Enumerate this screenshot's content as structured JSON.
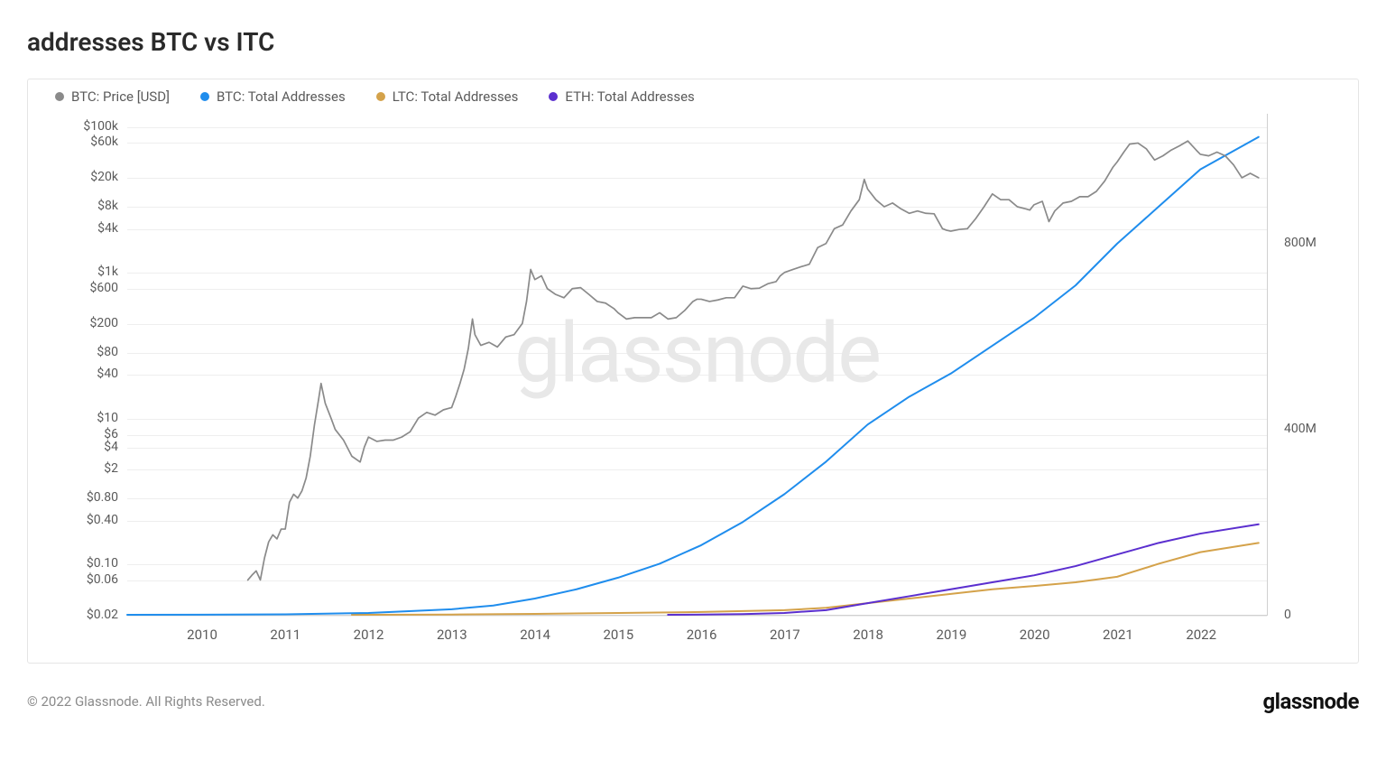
{
  "title": "addresses BTC vs ITC",
  "legend": [
    {
      "label": "BTC: Price [USD]",
      "color": "#8a8a8a"
    },
    {
      "label": "BTC: Total Addresses",
      "color": "#1f8ded"
    },
    {
      "label": "LTC: Total Addresses",
      "color": "#d4a24a"
    },
    {
      "label": "ETH: Total Addresses",
      "color": "#5b2fcf"
    }
  ],
  "watermark": "glassnode",
  "copyright": "© 2022 Glassnode. All Rights Reserved.",
  "brand": "glassnode",
  "chart": {
    "background_color": "#ffffff",
    "grid_color": "#eeeeee",
    "border_color": "#d0d0d0",
    "text_color": "#5a5a5a",
    "watermark_color": "#e8e8e8",
    "axis_fontsize": 14,
    "x": {
      "domain": [
        2009.1,
        2022.8
      ],
      "ticks": [
        2010,
        2011,
        2012,
        2013,
        2014,
        2015,
        2016,
        2017,
        2018,
        2019,
        2020,
        2021,
        2022
      ]
    },
    "y_left": {
      "scale": "log",
      "domain_log10": [
        -1.7,
        5.18
      ],
      "ticks": [
        {
          "v": 0.02,
          "label": "$0.02"
        },
        {
          "v": 0.06,
          "label": "$0.06"
        },
        {
          "v": 0.1,
          "label": "$0.10"
        },
        {
          "v": 0.4,
          "label": "$0.40"
        },
        {
          "v": 0.8,
          "label": "$0.80"
        },
        {
          "v": 2,
          "label": "$2"
        },
        {
          "v": 4,
          "label": "$4"
        },
        {
          "v": 6,
          "label": "$6"
        },
        {
          "v": 10,
          "label": "$10"
        },
        {
          "v": 40,
          "label": "$40"
        },
        {
          "v": 80,
          "label": "$80"
        },
        {
          "v": 200,
          "label": "$200"
        },
        {
          "v": 600,
          "label": "$600"
        },
        {
          "v": 1000,
          "label": "$1k"
        },
        {
          "v": 4000,
          "label": "$4k"
        },
        {
          "v": 8000,
          "label": "$8k"
        },
        {
          "v": 20000,
          "label": "$20k"
        },
        {
          "v": 60000,
          "label": "$60k"
        },
        {
          "v": 100000,
          "label": "$100k"
        }
      ]
    },
    "y_right": {
      "scale": "linear",
      "domain": [
        0,
        1080000000
      ],
      "ticks": [
        {
          "v": 0,
          "label": "0"
        },
        {
          "v": 400000000,
          "label": "400M"
        },
        {
          "v": 800000000,
          "label": "800M"
        }
      ]
    },
    "series": {
      "btc_price": {
        "color": "#8a8a8a",
        "width": 1.7,
        "axis": "left",
        "points": [
          [
            2010.55,
            0.06
          ],
          [
            2010.6,
            0.07
          ],
          [
            2010.65,
            0.08
          ],
          [
            2010.7,
            0.06
          ],
          [
            2010.75,
            0.12
          ],
          [
            2010.8,
            0.2
          ],
          [
            2010.85,
            0.25
          ],
          [
            2010.9,
            0.22
          ],
          [
            2010.95,
            0.3
          ],
          [
            2011.0,
            0.3
          ],
          [
            2011.05,
            0.7
          ],
          [
            2011.1,
            0.9
          ],
          [
            2011.15,
            0.8
          ],
          [
            2011.2,
            1.0
          ],
          [
            2011.25,
            1.5
          ],
          [
            2011.3,
            3.0
          ],
          [
            2011.35,
            8.0
          ],
          [
            2011.4,
            18.0
          ],
          [
            2011.43,
            30.0
          ],
          [
            2011.48,
            16.0
          ],
          [
            2011.55,
            10.0
          ],
          [
            2011.6,
            7.0
          ],
          [
            2011.7,
            5.0
          ],
          [
            2011.8,
            3.0
          ],
          [
            2011.9,
            2.5
          ],
          [
            2011.95,
            4.0
          ],
          [
            2012.0,
            5.5
          ],
          [
            2012.1,
            4.8
          ],
          [
            2012.2,
            5.0
          ],
          [
            2012.3,
            5.0
          ],
          [
            2012.4,
            5.5
          ],
          [
            2012.5,
            6.5
          ],
          [
            2012.6,
            10.0
          ],
          [
            2012.7,
            12.0
          ],
          [
            2012.8,
            11.0
          ],
          [
            2012.9,
            13.0
          ],
          [
            2012.95,
            13.5
          ],
          [
            2013.0,
            14
          ],
          [
            2013.05,
            20
          ],
          [
            2013.1,
            30
          ],
          [
            2013.15,
            47
          ],
          [
            2013.2,
            90
          ],
          [
            2013.25,
            230
          ],
          [
            2013.28,
            140
          ],
          [
            2013.35,
            100
          ],
          [
            2013.45,
            110
          ],
          [
            2013.55,
            95
          ],
          [
            2013.65,
            130
          ],
          [
            2013.75,
            140
          ],
          [
            2013.85,
            200
          ],
          [
            2013.9,
            400
          ],
          [
            2013.95,
            1100
          ],
          [
            2014.0,
            800
          ],
          [
            2014.08,
            900
          ],
          [
            2014.15,
            600
          ],
          [
            2014.25,
            500
          ],
          [
            2014.35,
            450
          ],
          [
            2014.45,
            600
          ],
          [
            2014.55,
            620
          ],
          [
            2014.65,
            500
          ],
          [
            2014.75,
            400
          ],
          [
            2014.85,
            380
          ],
          [
            2014.95,
            320
          ],
          [
            2015.0,
            280
          ],
          [
            2015.1,
            230
          ],
          [
            2015.2,
            240
          ],
          [
            2015.3,
            240
          ],
          [
            2015.4,
            240
          ],
          [
            2015.5,
            280
          ],
          [
            2015.6,
            230
          ],
          [
            2015.7,
            240
          ],
          [
            2015.8,
            300
          ],
          [
            2015.9,
            400
          ],
          [
            2015.95,
            430
          ],
          [
            2016.0,
            430
          ],
          [
            2016.1,
            400
          ],
          [
            2016.2,
            420
          ],
          [
            2016.3,
            450
          ],
          [
            2016.4,
            450
          ],
          [
            2016.5,
            650
          ],
          [
            2016.6,
            600
          ],
          [
            2016.7,
            610
          ],
          [
            2016.8,
            700
          ],
          [
            2016.9,
            750
          ],
          [
            2016.95,
            900
          ],
          [
            2017.0,
            1000
          ],
          [
            2017.1,
            1100
          ],
          [
            2017.2,
            1200
          ],
          [
            2017.3,
            1300
          ],
          [
            2017.4,
            2200
          ],
          [
            2017.5,
            2500
          ],
          [
            2017.6,
            4000
          ],
          [
            2017.7,
            4500
          ],
          [
            2017.8,
            7000
          ],
          [
            2017.9,
            10000
          ],
          [
            2017.96,
            19000
          ],
          [
            2018.0,
            14000
          ],
          [
            2018.1,
            10000
          ],
          [
            2018.2,
            8000
          ],
          [
            2018.3,
            9000
          ],
          [
            2018.4,
            7500
          ],
          [
            2018.5,
            6500
          ],
          [
            2018.6,
            7000
          ],
          [
            2018.7,
            6500
          ],
          [
            2018.8,
            6400
          ],
          [
            2018.9,
            4000
          ],
          [
            2018.95,
            3800
          ],
          [
            2019.0,
            3700
          ],
          [
            2019.1,
            3900
          ],
          [
            2019.2,
            4000
          ],
          [
            2019.3,
            5500
          ],
          [
            2019.4,
            8000
          ],
          [
            2019.5,
            12000
          ],
          [
            2019.6,
            10000
          ],
          [
            2019.7,
            10000
          ],
          [
            2019.8,
            8000
          ],
          [
            2019.9,
            7500
          ],
          [
            2019.95,
            7200
          ],
          [
            2020.0,
            8500
          ],
          [
            2020.1,
            9500
          ],
          [
            2020.18,
            5000
          ],
          [
            2020.25,
            7000
          ],
          [
            2020.35,
            9000
          ],
          [
            2020.45,
            9500
          ],
          [
            2020.55,
            11000
          ],
          [
            2020.65,
            11000
          ],
          [
            2020.75,
            13000
          ],
          [
            2020.85,
            18000
          ],
          [
            2020.95,
            28000
          ],
          [
            2021.0,
            33000
          ],
          [
            2021.08,
            45000
          ],
          [
            2021.15,
            58000
          ],
          [
            2021.25,
            60000
          ],
          [
            2021.35,
            50000
          ],
          [
            2021.45,
            35000
          ],
          [
            2021.55,
            40000
          ],
          [
            2021.65,
            48000
          ],
          [
            2021.75,
            55000
          ],
          [
            2021.85,
            64000
          ],
          [
            2021.95,
            48000
          ],
          [
            2022.0,
            42000
          ],
          [
            2022.1,
            40000
          ],
          [
            2022.2,
            45000
          ],
          [
            2022.3,
            40000
          ],
          [
            2022.4,
            30000
          ],
          [
            2022.5,
            20000
          ],
          [
            2022.6,
            23000
          ],
          [
            2022.7,
            20000
          ]
        ]
      },
      "btc_addresses": {
        "color": "#1f8ded",
        "width": 2.0,
        "axis": "right",
        "points": [
          [
            2009.1,
            0
          ],
          [
            2010.0,
            200000
          ],
          [
            2011.0,
            1000000
          ],
          [
            2012.0,
            4000000
          ],
          [
            2013.0,
            12000000
          ],
          [
            2013.5,
            20000000
          ],
          [
            2014.0,
            35000000
          ],
          [
            2014.5,
            55000000
          ],
          [
            2015.0,
            80000000
          ],
          [
            2015.5,
            110000000
          ],
          [
            2016.0,
            150000000
          ],
          [
            2016.5,
            200000000
          ],
          [
            2017.0,
            260000000
          ],
          [
            2017.5,
            330000000
          ],
          [
            2018.0,
            410000000
          ],
          [
            2018.5,
            470000000
          ],
          [
            2019.0,
            520000000
          ],
          [
            2019.5,
            580000000
          ],
          [
            2020.0,
            640000000
          ],
          [
            2020.5,
            710000000
          ],
          [
            2021.0,
            800000000
          ],
          [
            2021.5,
            880000000
          ],
          [
            2022.0,
            960000000
          ],
          [
            2022.7,
            1030000000
          ]
        ]
      },
      "ltc_addresses": {
        "color": "#d4a24a",
        "width": 2.0,
        "axis": "right",
        "points": [
          [
            2011.8,
            0
          ],
          [
            2013.0,
            500000
          ],
          [
            2014.0,
            2000000
          ],
          [
            2015.0,
            4000000
          ],
          [
            2016.0,
            6000000
          ],
          [
            2017.0,
            10000000
          ],
          [
            2017.5,
            15000000
          ],
          [
            2018.0,
            25000000
          ],
          [
            2018.5,
            35000000
          ],
          [
            2019.0,
            45000000
          ],
          [
            2019.5,
            55000000
          ],
          [
            2020.0,
            62000000
          ],
          [
            2020.5,
            70000000
          ],
          [
            2021.0,
            82000000
          ],
          [
            2021.5,
            110000000
          ],
          [
            2022.0,
            135000000
          ],
          [
            2022.7,
            155000000
          ]
        ]
      },
      "eth_addresses": {
        "color": "#5b2fcf",
        "width": 2.0,
        "axis": "right",
        "points": [
          [
            2015.6,
            0
          ],
          [
            2016.0,
            500000
          ],
          [
            2016.5,
            1500000
          ],
          [
            2017.0,
            4000000
          ],
          [
            2017.5,
            10000000
          ],
          [
            2018.0,
            25000000
          ],
          [
            2018.5,
            40000000
          ],
          [
            2019.0,
            55000000
          ],
          [
            2019.5,
            70000000
          ],
          [
            2020.0,
            85000000
          ],
          [
            2020.5,
            105000000
          ],
          [
            2021.0,
            130000000
          ],
          [
            2021.5,
            155000000
          ],
          [
            2022.0,
            175000000
          ],
          [
            2022.7,
            195000000
          ]
        ]
      }
    }
  }
}
